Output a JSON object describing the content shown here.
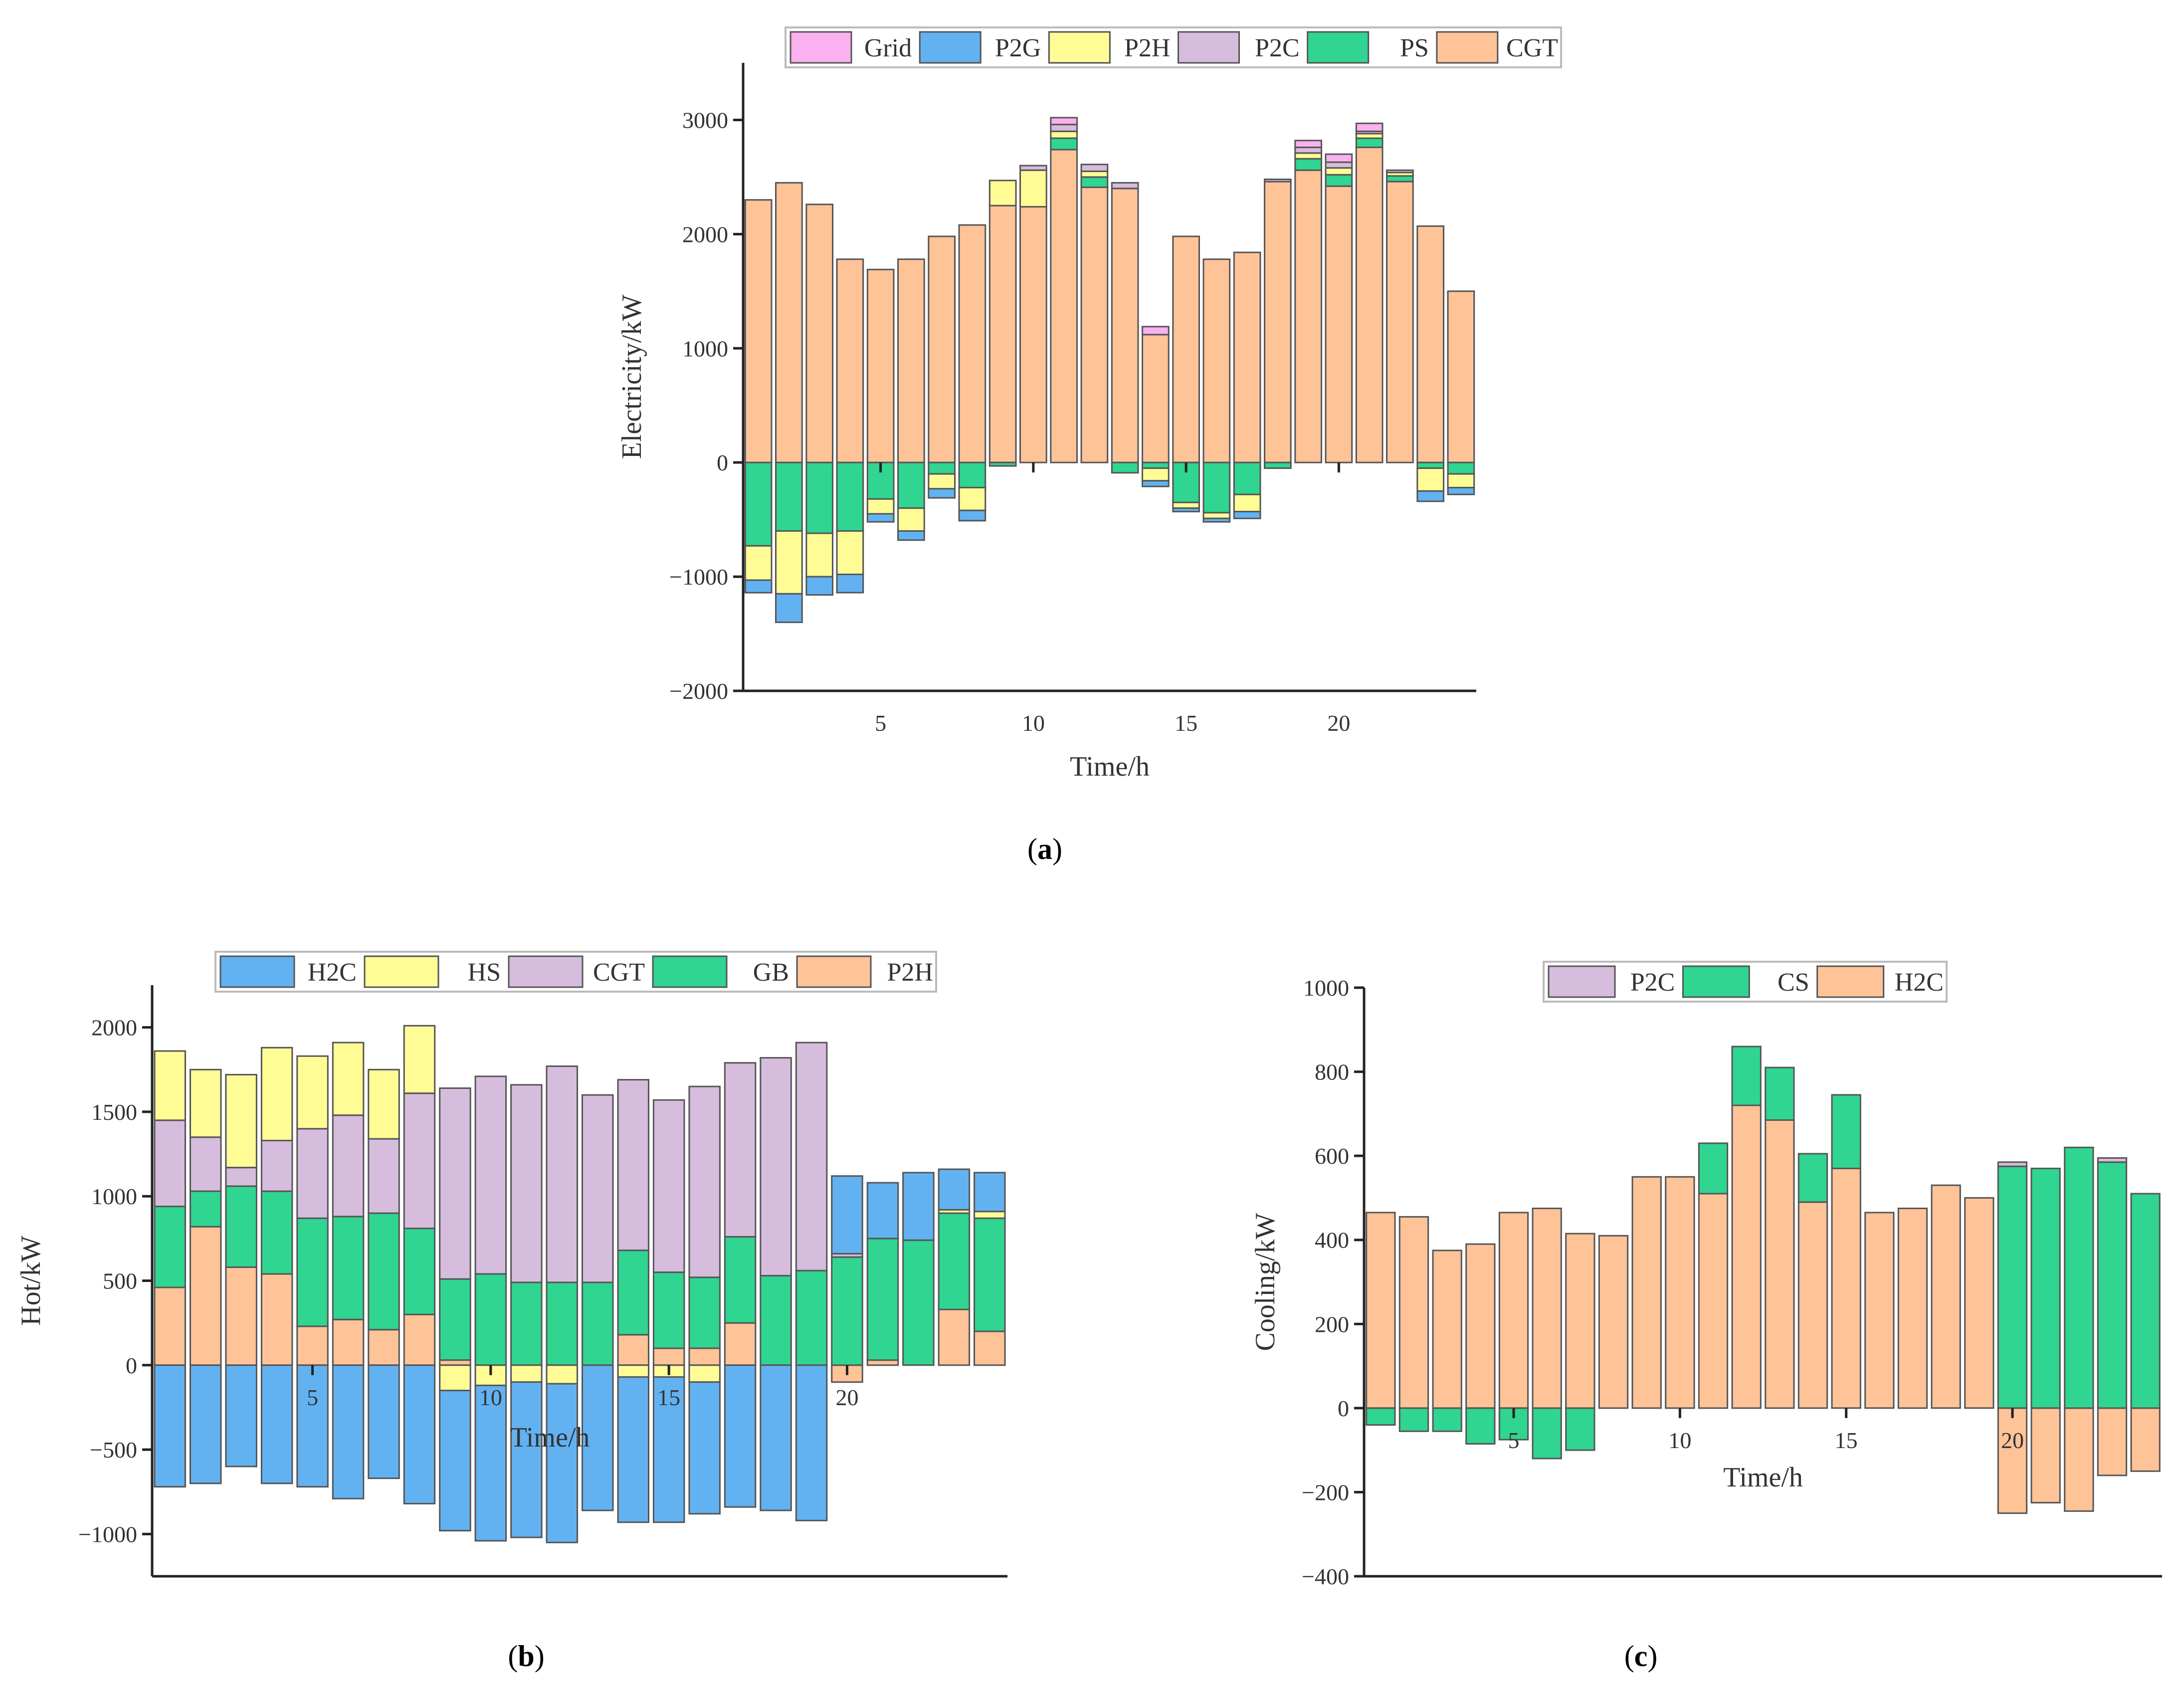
{
  "chart_data": [
    {
      "id": "a",
      "type": "bar",
      "stacked": true,
      "caption_letter": "a",
      "xlabel": "Time/h",
      "ylabel": "Electricity/kW",
      "ylim": [
        -2000,
        3500
      ],
      "yticks": [
        -2000,
        -1000,
        0,
        1000,
        2000,
        3000
      ],
      "ytick_labels": [
        "−2000",
        "−1000",
        "0",
        "1000",
        "2000",
        "3000"
      ],
      "xlim": [
        0.5,
        24.5
      ],
      "xticks": [
        5,
        10,
        15,
        20
      ],
      "x": [
        1,
        2,
        3,
        4,
        5,
        6,
        7,
        8,
        9,
        10,
        11,
        12,
        13,
        14,
        15,
        16,
        17,
        18,
        19,
        20,
        21,
        22,
        23,
        24
      ],
      "legend": [
        "Grid",
        "P2G",
        "P2H",
        "P2C",
        "PS",
        "CGT"
      ],
      "series": [
        {
          "name": "CGT",
          "color": "#ffc398",
          "values": [
            2300,
            2450,
            2260,
            1780,
            1690,
            1780,
            1980,
            2080,
            2250,
            2240,
            2740,
            2410,
            2400,
            1120,
            1980,
            1780,
            1840,
            2460,
            2560,
            2420,
            2760,
            2460,
            2070,
            1500
          ]
        },
        {
          "name": "PS",
          "color": "#2fd590",
          "values": [
            -730,
            -600,
            -620,
            -600,
            -320,
            -400,
            -100,
            -220,
            -30,
            0,
            100,
            90,
            -90,
            -50,
            -350,
            -440,
            -280,
            -50,
            100,
            100,
            80,
            50,
            -50,
            -100
          ]
        },
        {
          "name": "P2H",
          "color": "#fffc96",
          "values": [
            -300,
            -550,
            -380,
            -380,
            -130,
            -200,
            -130,
            -200,
            220,
            320,
            60,
            50,
            0,
            -110,
            -50,
            -50,
            -150,
            0,
            50,
            60,
            40,
            30,
            -200,
            -120
          ]
        },
        {
          "name": "P2G",
          "color": "#62b2f2",
          "values": [
            -110,
            -250,
            -160,
            -160,
            -70,
            -80,
            -80,
            -90,
            0,
            0,
            0,
            0,
            0,
            -50,
            -30,
            -30,
            -60,
            0,
            0,
            0,
            0,
            0,
            -90,
            -60
          ]
        },
        {
          "name": "P2C",
          "color": "#d6bcdd",
          "values": [
            0,
            0,
            0,
            0,
            0,
            0,
            0,
            0,
            0,
            40,
            60,
            60,
            50,
            0,
            0,
            0,
            0,
            20,
            50,
            50,
            20,
            20,
            0,
            0
          ]
        },
        {
          "name": "Grid",
          "color": "#fbb0ef",
          "values": [
            0,
            0,
            0,
            0,
            0,
            0,
            0,
            0,
            0,
            0,
            60,
            0,
            0,
            70,
            0,
            0,
            0,
            0,
            60,
            70,
            70,
            0,
            0,
            0
          ]
        }
      ]
    },
    {
      "id": "b",
      "type": "bar",
      "stacked": true,
      "caption_letter": "b",
      "xlabel": "Time/h",
      "ylabel": "Hot/kW",
      "ylim": [
        -1250,
        2250
      ],
      "yticks": [
        -1000,
        -500,
        0,
        500,
        1000,
        1500,
        2000
      ],
      "ytick_labels": [
        "−1000",
        "−500",
        "0",
        "500",
        "1000",
        "1500",
        "2000"
      ],
      "xlim": [
        0.5,
        24.5
      ],
      "xticks": [
        5,
        10,
        15,
        20
      ],
      "x": [
        1,
        2,
        3,
        4,
        5,
        6,
        7,
        8,
        9,
        10,
        11,
        12,
        13,
        14,
        15,
        16,
        17,
        18,
        19,
        20,
        21,
        22,
        23,
        24
      ],
      "legend": [
        "H2C",
        "HS",
        "CGT",
        "GB",
        "P2H"
      ],
      "series": [
        {
          "name": "P2H",
          "color": "#ffc398",
          "values": [
            460,
            820,
            580,
            540,
            230,
            270,
            210,
            300,
            30,
            0,
            0,
            0,
            0,
            180,
            100,
            100,
            250,
            0,
            0,
            -100,
            30,
            0,
            330,
            200
          ]
        },
        {
          "name": "GB",
          "color": "#2fd590",
          "values": [
            480,
            210,
            480,
            490,
            640,
            610,
            690,
            510,
            480,
            540,
            490,
            490,
            490,
            500,
            450,
            420,
            510,
            530,
            560,
            640,
            720,
            740,
            570,
            670
          ]
        },
        {
          "name": "CGT",
          "color": "#d6bcdd",
          "values": [
            510,
            320,
            110,
            300,
            530,
            600,
            440,
            800,
            1130,
            1170,
            1170,
            1280,
            1110,
            1010,
            1020,
            1130,
            1030,
            1290,
            1350,
            20,
            0,
            0,
            0,
            0
          ]
        },
        {
          "name": "HS",
          "color": "#fffc96",
          "values": [
            410,
            400,
            550,
            550,
            430,
            430,
            410,
            400,
            -150,
            -120,
            -100,
            -110,
            0,
            -70,
            -70,
            -100,
            0,
            0,
            0,
            0,
            0,
            0,
            20,
            40
          ]
        },
        {
          "name": "H2C",
          "color": "#62b2f2",
          "values": [
            -720,
            -700,
            -600,
            -700,
            -720,
            -790,
            -670,
            -820,
            -830,
            -920,
            -920,
            -940,
            -860,
            -860,
            -860,
            -780,
            -840,
            -860,
            -920,
            460,
            330,
            400,
            240,
            230
          ]
        }
      ]
    },
    {
      "id": "c",
      "type": "bar",
      "stacked": true,
      "caption_letter": "c",
      "xlabel": "Time/h",
      "ylabel": "Cooling/kW",
      "ylim": [
        -400,
        1000
      ],
      "yticks": [
        -400,
        -200,
        0,
        200,
        400,
        600,
        800,
        1000
      ],
      "ytick_labels": [
        "−400",
        "−200",
        "0",
        "200",
        "400",
        "600",
        "800",
        "1000"
      ],
      "xlim": [
        0.5,
        24.5
      ],
      "xticks": [
        5,
        10,
        15,
        20
      ],
      "x": [
        1,
        2,
        3,
        4,
        5,
        6,
        7,
        8,
        9,
        10,
        11,
        12,
        13,
        14,
        15,
        16,
        17,
        18,
        19,
        20,
        21,
        22,
        23,
        24
      ],
      "legend": [
        "P2C",
        "CS",
        "H2C"
      ],
      "series": [
        {
          "name": "H2C",
          "color": "#ffc398",
          "values": [
            465,
            455,
            375,
            390,
            465,
            475,
            415,
            410,
            550,
            550,
            510,
            720,
            685,
            490,
            570,
            465,
            475,
            530,
            500,
            -250,
            -225,
            -245,
            -160,
            -150
          ]
        },
        {
          "name": "CS",
          "color": "#2fd590",
          "values": [
            -40,
            -55,
            -55,
            -85,
            -75,
            -120,
            -100,
            0,
            0,
            0,
            120,
            140,
            125,
            115,
            175,
            0,
            0,
            0,
            0,
            575,
            570,
            620,
            585,
            510
          ]
        },
        {
          "name": "P2C",
          "color": "#d6bcdd",
          "values": [
            0,
            0,
            0,
            0,
            0,
            0,
            0,
            0,
            0,
            0,
            0,
            0,
            0,
            0,
            0,
            0,
            0,
            0,
            0,
            10,
            0,
            0,
            10,
            0
          ]
        }
      ]
    }
  ]
}
